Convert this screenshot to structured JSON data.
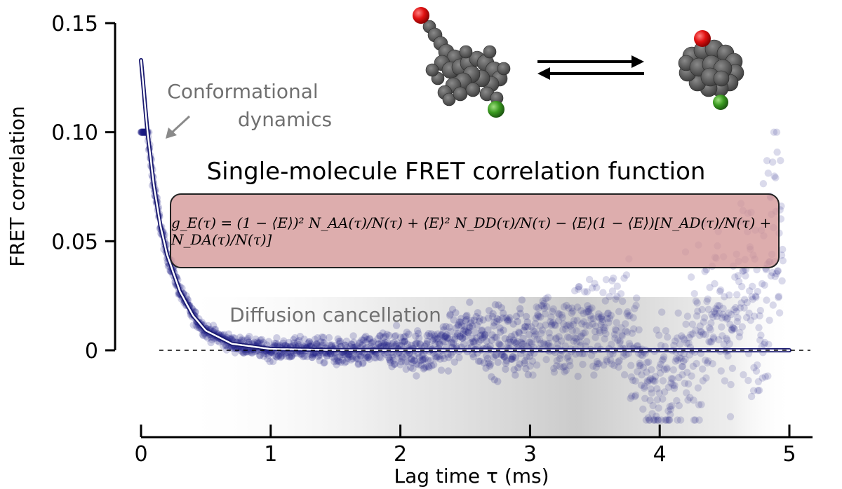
{
  "chart_data": {
    "type": "scatter",
    "ylabel": "FRET correlation",
    "xlabel": "Lag time τ (ms)",
    "xlim": [
      0,
      5
    ],
    "ylim": [
      0,
      0.15
    ],
    "xticks": [
      0,
      1,
      2,
      3,
      4,
      5
    ],
    "xtick_labels": [
      "0",
      "1",
      "2",
      "3",
      "4",
      "5"
    ],
    "yticks": [
      0,
      0.05,
      0.1,
      0.15
    ],
    "ytick_labels": [
      "0",
      "0.05",
      "0.10",
      "0.15"
    ],
    "grid": false,
    "series": [
      {
        "kind": "scatter",
        "x": [
          0.0,
          0.05,
          0.1,
          0.15,
          0.2,
          0.3,
          0.4,
          0.5,
          0.7,
          1.0,
          1.3,
          1.6,
          1.9,
          2.2,
          2.5,
          2.8,
          3.0,
          3.1,
          3.2,
          3.4,
          3.5,
          3.6,
          3.8,
          3.9,
          4.0,
          4.1,
          4.2,
          4.4,
          4.5,
          4.6,
          4.8,
          4.9
        ],
        "y": [
          0.133,
          0.1,
          0.075,
          0.057,
          0.044,
          0.027,
          0.016,
          0.009,
          0.003,
          0.0,
          0.001,
          -0.002,
          0.001,
          -0.001,
          0.008,
          0.004,
          0.004,
          0.016,
          0.001,
          0.012,
          0.008,
          0.013,
          0.004,
          -0.016,
          -0.012,
          -0.02,
          -0.006,
          0.02,
          0.008,
          0.024,
          0.03,
          0.06
        ]
      },
      {
        "kind": "fit",
        "x": [
          0.0,
          0.05,
          0.1,
          0.15,
          0.2,
          0.3,
          0.4,
          0.5,
          0.7,
          1.0,
          1.5,
          2.0,
          2.5,
          3.0,
          3.5,
          4.0,
          4.5,
          5.0
        ],
        "y": [
          0.133,
          0.1,
          0.075,
          0.057,
          0.044,
          0.027,
          0.016,
          0.009,
          0.003,
          0.0006,
          0.0001,
          0.0,
          0.0,
          0.0,
          0.0,
          0.0,
          0.0,
          0.0
        ]
      }
    ],
    "baseline": 0,
    "colors": {
      "points": "#1a1a80",
      "fit_line": "#ffffff",
      "formula_box": "#d49696",
      "shading": "#9a9a9a"
    },
    "annotations": {
      "dynamics": [
        "Conformational",
        "dynamics"
      ],
      "diffusion": "Diffusion cancellation",
      "title": "Single-molecule FRET correlation function",
      "formula": "g_E(τ) = (1 − ⟨E⟩)² N_AA(τ)/N(τ) + ⟨E⟩² N_DD(τ)/N(τ) − ⟨E⟩(1 − ⟨E⟩)[N_AD(τ)/N(τ) + N_DA(τ)/N(τ)]"
    },
    "icons": [
      "protein-extended-icon",
      "equilibrium-arrows-icon",
      "protein-compact-icon"
    ]
  }
}
